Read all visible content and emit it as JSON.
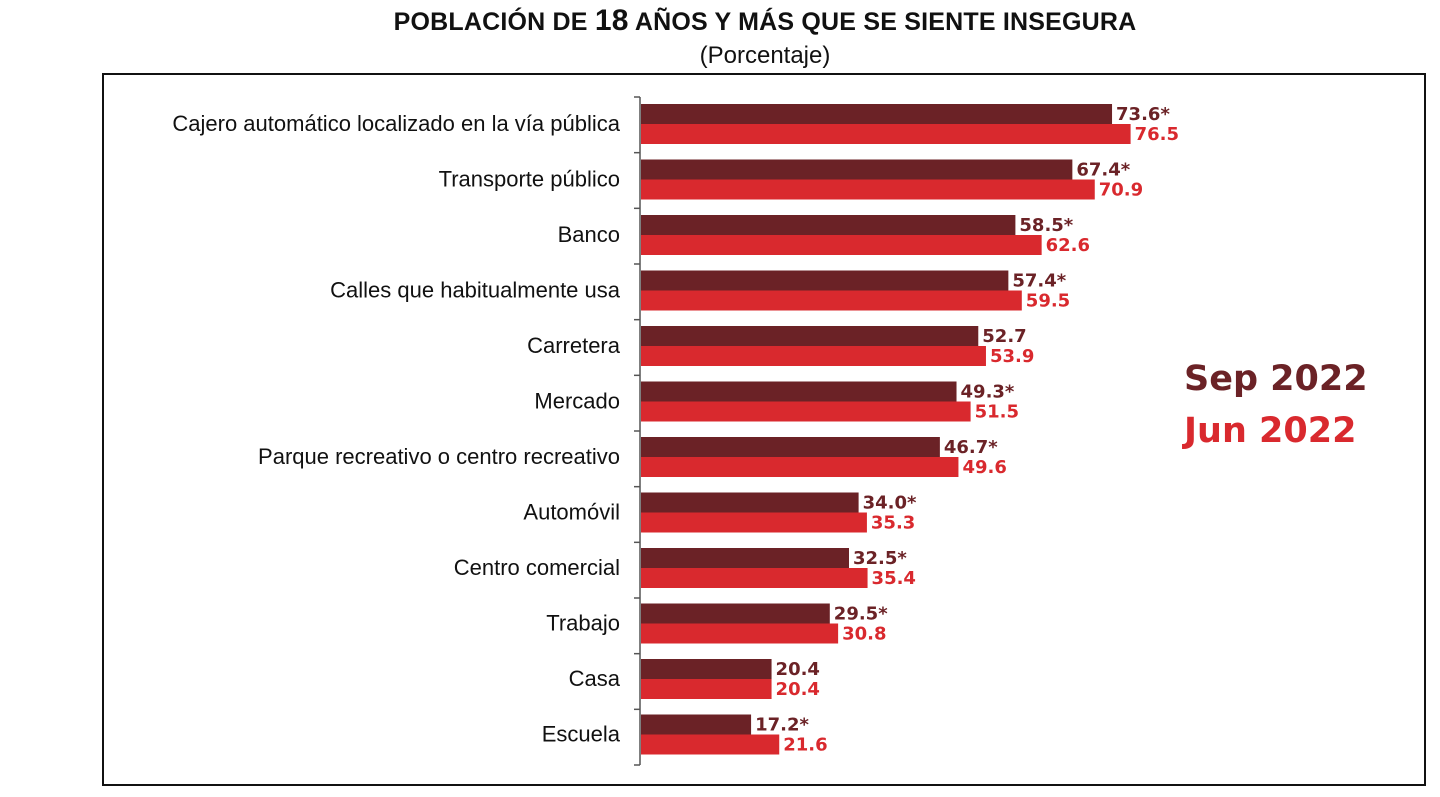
{
  "header": {
    "title_pre": "POBLACIÓN DE",
    "title_num": "18",
    "title_post": "AÑOS Y MÁS QUE SE SIENTE INSEGURA",
    "subtitle": "(Porcentaje)"
  },
  "legend": {
    "series1": "Sep 2022",
    "series2": "Jun 2022"
  },
  "colors": {
    "series1": "#6b2226",
    "series2": "#d9292e"
  },
  "chart_data": {
    "type": "bar",
    "orientation": "horizontal",
    "title": "POBLACIÓN DE 18 AÑOS Y MÁS QUE SE SIENTE INSEGURA",
    "subtitle": "(Porcentaje)",
    "legend_position": "right",
    "grid": false,
    "xlim": [
      0,
      100
    ],
    "categories": [
      "Cajero automático localizado en la vía pública",
      "Transporte público",
      "Banco",
      "Calles que habitualmente usa",
      "Carretera",
      "Mercado",
      "Parque recreativo o centro recreativo",
      "Automóvil",
      "Centro comercial",
      "Trabajo",
      "Casa",
      "Escuela"
    ],
    "series": [
      {
        "name": "Sep 2022",
        "values": [
          73.6,
          67.4,
          58.5,
          57.4,
          52.7,
          49.3,
          46.7,
          34.0,
          32.5,
          29.5,
          20.4,
          17.2
        ],
        "labels": [
          "73.6*",
          "67.4*",
          "58.5*",
          "57.4*",
          "52.7",
          "49.3*",
          "46.7*",
          "34.0*",
          "32.5*",
          "29.5*",
          "20.4",
          "17.2*"
        ]
      },
      {
        "name": "Jun 2022",
        "values": [
          76.5,
          70.9,
          62.6,
          59.5,
          53.9,
          51.5,
          49.6,
          35.3,
          35.4,
          30.8,
          20.4,
          21.6
        ],
        "labels": [
          "76.5",
          "70.9",
          "62.6",
          "59.5",
          "53.9",
          "51.5",
          "49.6",
          "35.3",
          "35.4",
          "30.8",
          "20.4",
          "21.6"
        ]
      }
    ]
  }
}
